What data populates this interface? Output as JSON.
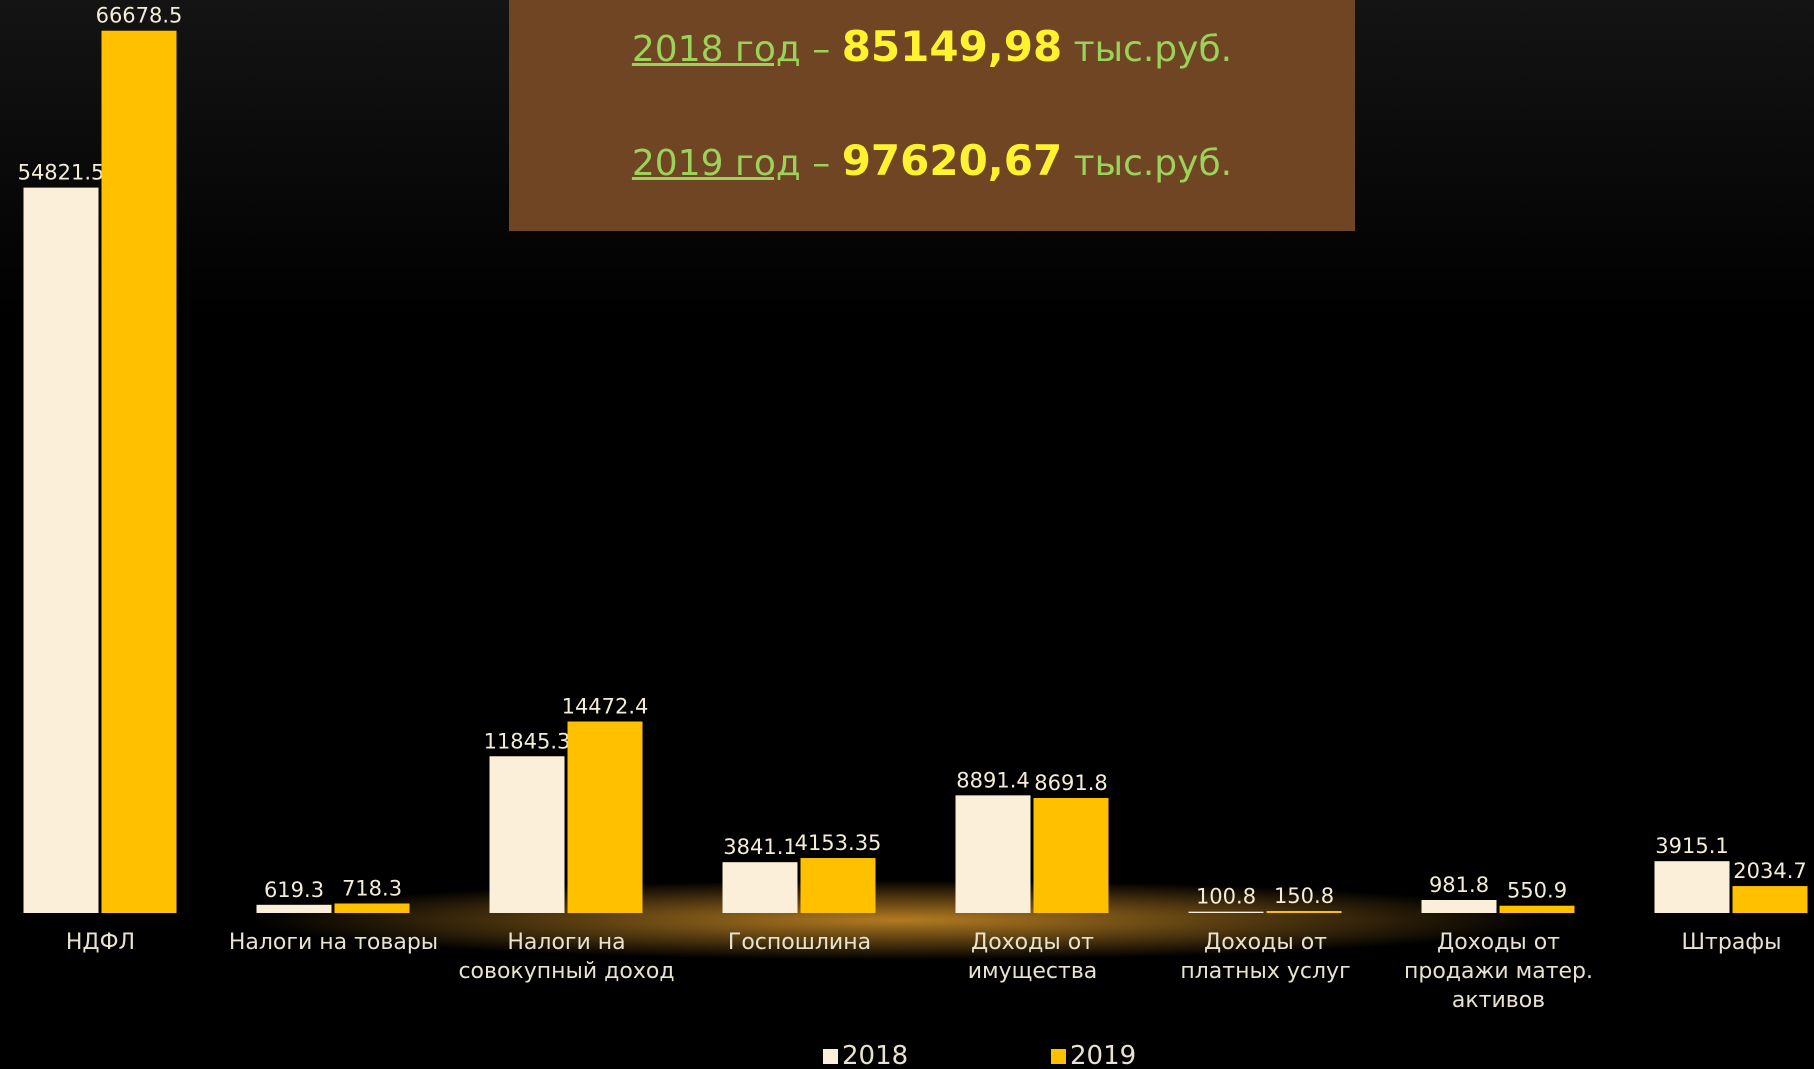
{
  "header": {
    "lines": [
      {
        "year": "2018 год",
        "separator": "–",
        "amount": "85149,98",
        "unit": "тыс.руб."
      },
      {
        "year": "2019 год",
        "separator": "–",
        "amount": "97620,67",
        "unit": "тыс.руб."
      }
    ]
  },
  "chart_data": {
    "type": "bar",
    "categories": [
      "НДФЛ",
      "Налоги на товары",
      "Налоги на совокупный доход",
      "Госпошлина",
      "Доходы от имущества",
      "Доходы от платных услуг",
      "Доходы от продажи матер. активов",
      "Штрафы"
    ],
    "series": [
      {
        "name": "2018",
        "color": "#fbefd9",
        "values": [
          54821.5,
          619.3,
          11845.3,
          3841.1,
          8891.4,
          100.8,
          981.8,
          3915.1
        ]
      },
      {
        "name": "2019",
        "color": "#ffc000",
        "values": [
          66678.5,
          718.3,
          14472.4,
          4153.35,
          8691.8,
          150.8,
          550.9,
          2034.7
        ]
      }
    ],
    "ylim": [
      0,
      69000
    ],
    "grid": false,
    "legend": "bottom"
  }
}
